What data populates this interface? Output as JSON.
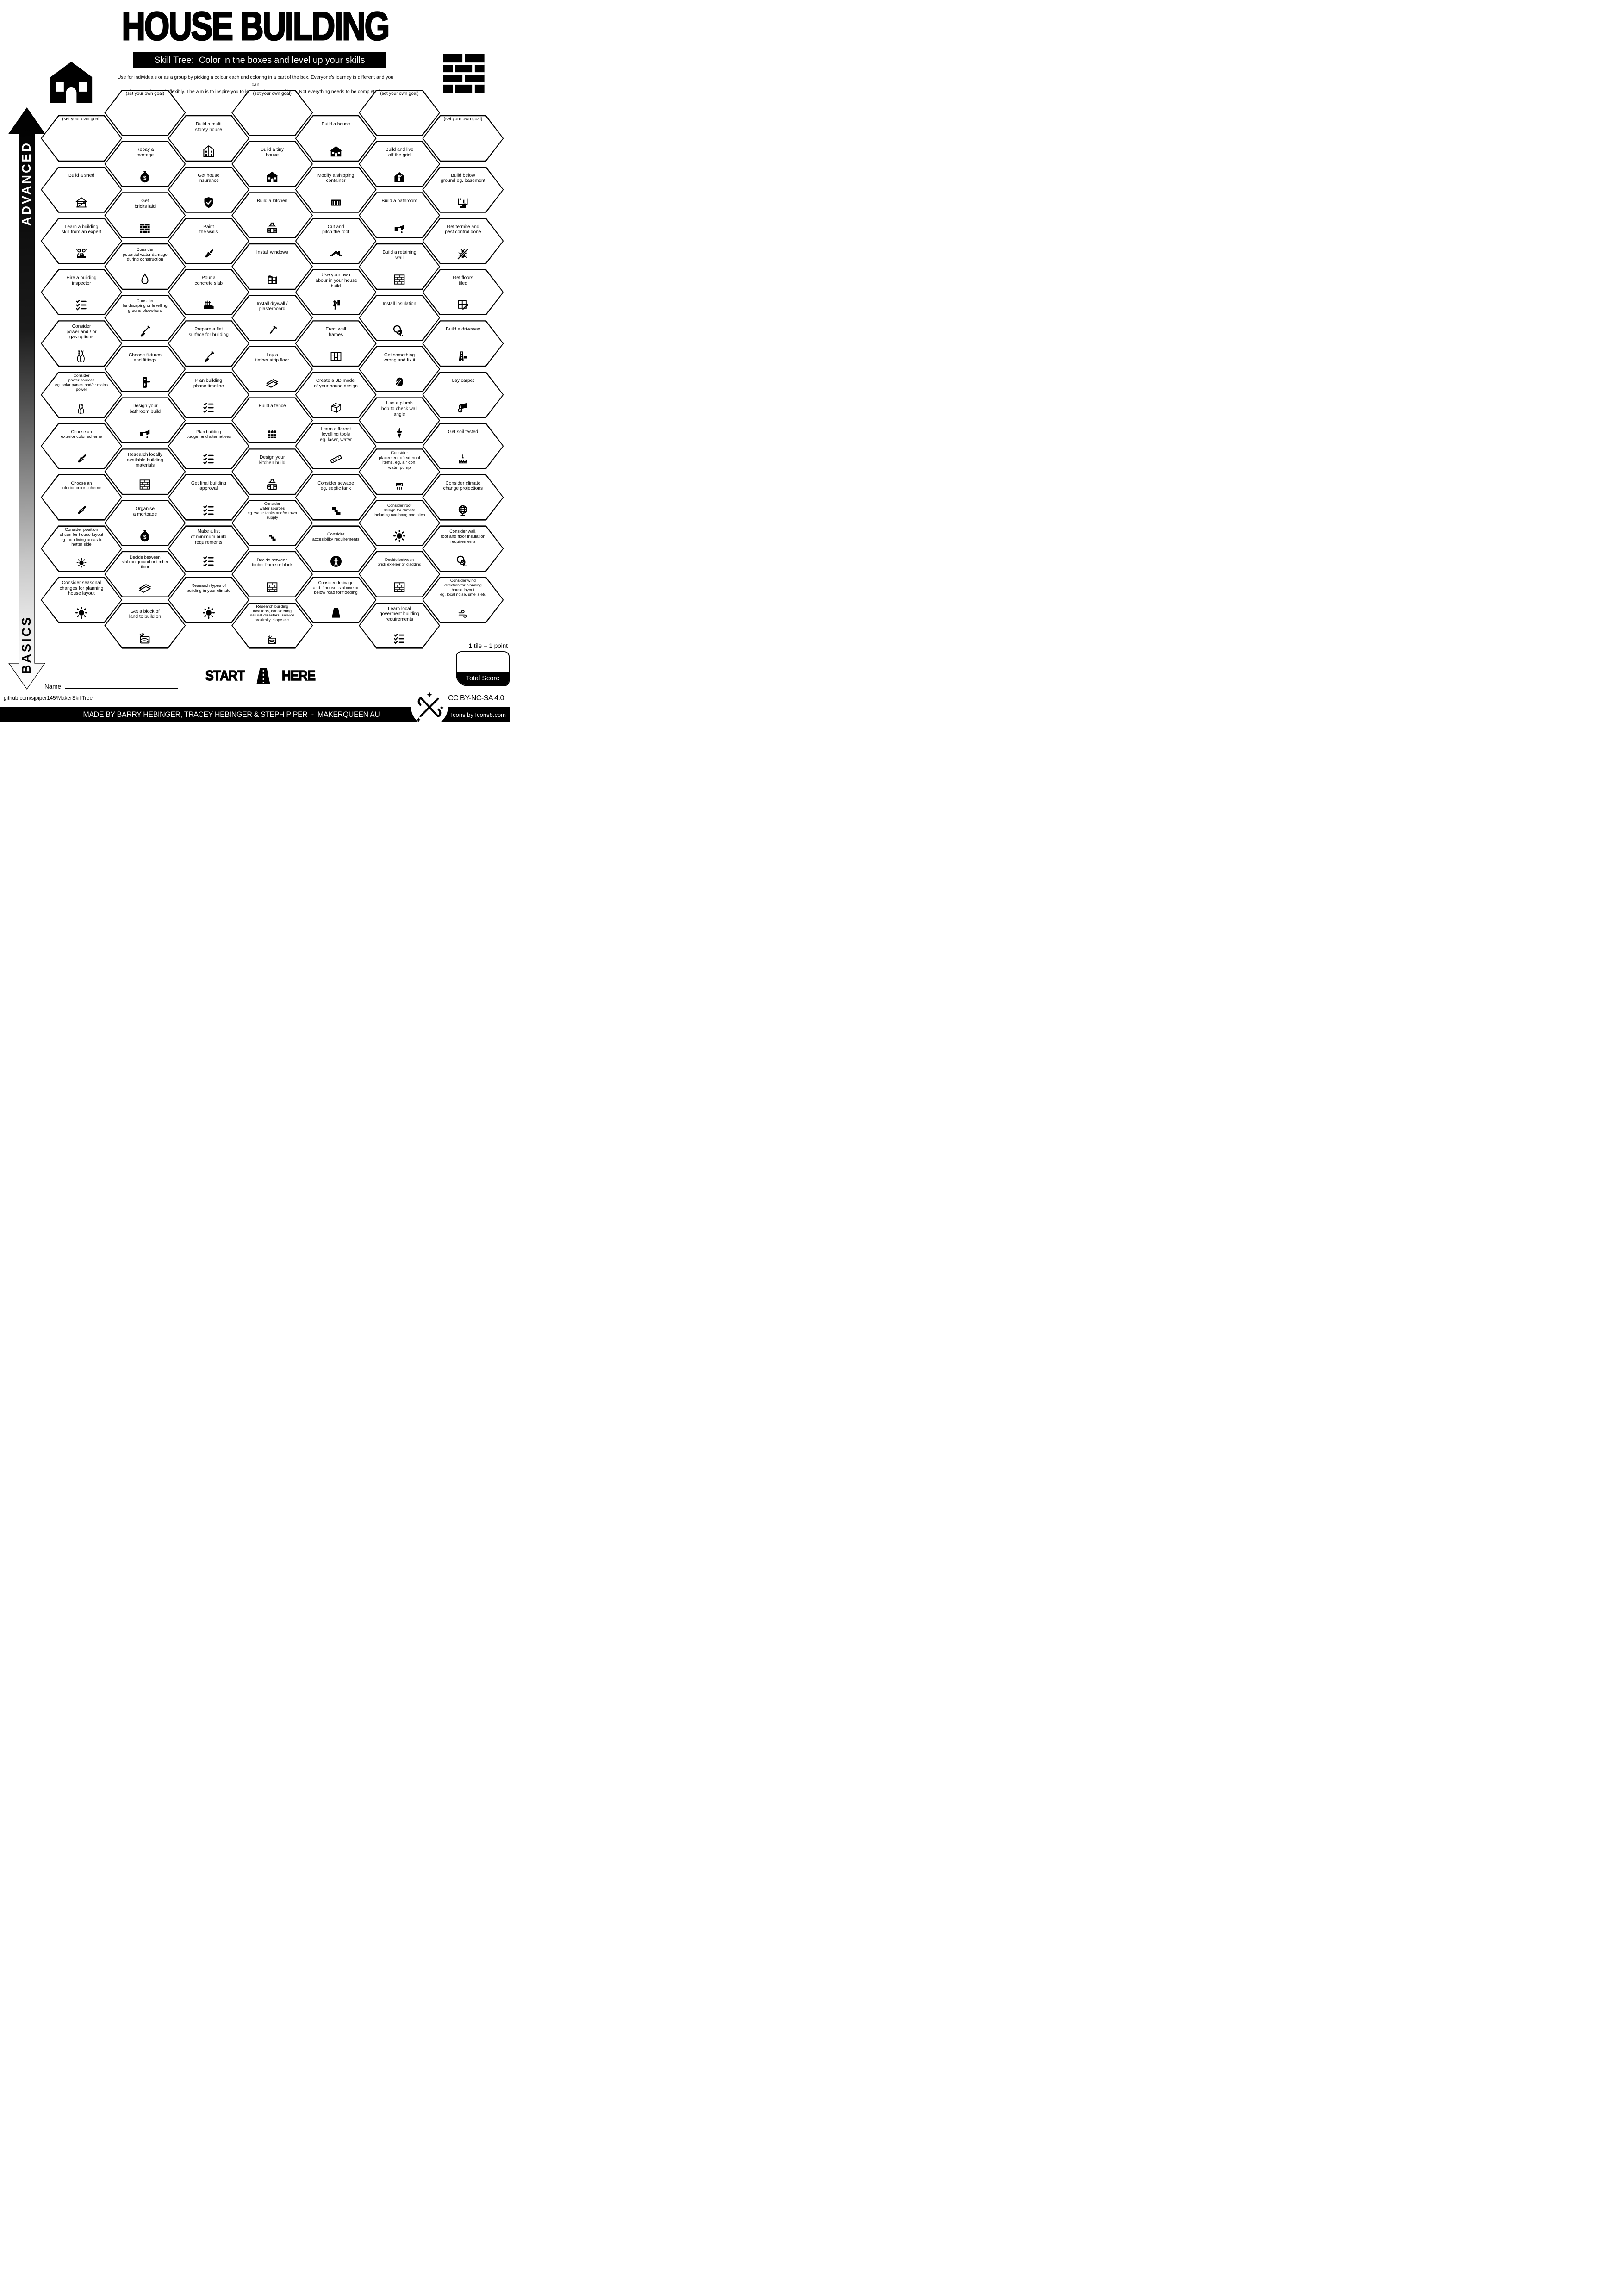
{
  "header": {
    "title": "HOUSE BUILDING",
    "subtitle": "Skill Tree:  Color in the boxes and level up your skills",
    "description": "Use for individuals or as a group by picking a colour each and coloring in a part of the box.  Everyone's journey is different and you can\ninterpret the goals flexibly.  The aim is to inspire you to learn and try new things. Not everything needs to be completed.",
    "corner_icons": {
      "left": "house-icon",
      "right": "brick-wall-icon"
    }
  },
  "axis": {
    "top_label": "ADVANCED",
    "bottom_label": "BASICS"
  },
  "start": {
    "start_label": "START",
    "here_label": "HERE",
    "icon": "road-icon"
  },
  "name_field": {
    "label": "Name:"
  },
  "legend": {
    "tile_points": "1 tile = 1 point",
    "total_score_label": "Total Score"
  },
  "links": {
    "github": "github.com/sjpiper145/MakerSkillTree",
    "license": "CC BY-NC-SA 4.0",
    "credit": "MADE BY BARRY HEBINGER, TRACEY HEBINGER & STEPH PIPER  -  MAKERQUEEN AU",
    "icons_credit": "Icons by Icons8.com"
  },
  "colors": {
    "ink": "#000000",
    "paper": "#ffffff"
  },
  "tiles": [
    {
      "col": 0,
      "row": 0,
      "label": "(set your own goal)",
      "icon": null
    },
    {
      "col": 0,
      "row": 1,
      "label": "Build a shed",
      "icon": "shed-icon"
    },
    {
      "col": 0,
      "row": 2,
      "label": "Learn a building\nskill from an expert",
      "icon": "experts-icon"
    },
    {
      "col": 0,
      "row": 3,
      "label": "Hire a building\ninspector",
      "icon": "checklist-icon"
    },
    {
      "col": 0,
      "row": 4,
      "label": "Consider\npower and / or\ngas options",
      "icon": "wires-icon"
    },
    {
      "col": 0,
      "row": 5,
      "label": "Consider\npower sources\neg. solar panels and/or mains\npower",
      "icon": "wires-icon"
    },
    {
      "col": 0,
      "row": 6,
      "label": "Choose an\nexterior color scheme",
      "icon": "paintbrush-icon"
    },
    {
      "col": 0,
      "row": 7,
      "label": "Choose an\ninterior color scheme",
      "icon": "paintbrush-icon"
    },
    {
      "col": 0,
      "row": 8,
      "label": "Consider position\nof sun for house layout\neg. non living areas to\nhotter side",
      "icon": "sun-icon"
    },
    {
      "col": 0,
      "row": 9,
      "label": "Consider seasonal\nchanges for planning\nhouse layout",
      "icon": "sun-icon"
    },
    {
      "col": 1,
      "row": 0,
      "label": "(set your own goal)",
      "icon": null
    },
    {
      "col": 1,
      "row": 1,
      "label": "Repay a\nmortage",
      "icon": "money-bag-icon"
    },
    {
      "col": 1,
      "row": 2,
      "label": "Get\nbricks laid",
      "icon": "brick-wall-icon"
    },
    {
      "col": 1,
      "row": 3,
      "label": "Consider\npotential water damage\nduring construction",
      "icon": "droplet-icon"
    },
    {
      "col": 1,
      "row": 4,
      "label": "Consider\nlandscaping or levelling\nground elsewhere",
      "icon": "shovel-icon"
    },
    {
      "col": 1,
      "row": 5,
      "label": "Choose fixtures\nand fittings",
      "icon": "door-handle-icon"
    },
    {
      "col": 1,
      "row": 6,
      "label": "Design your\nbathroom build",
      "icon": "faucet-icon"
    },
    {
      "col": 1,
      "row": 7,
      "label": "Research locally\navailable building\nmaterials",
      "icon": "brick-wall-outline-icon"
    },
    {
      "col": 1,
      "row": 8,
      "label": "Organise\na mortgage",
      "icon": "money-bag-icon"
    },
    {
      "col": 1,
      "row": 9,
      "label": "Decide between\nslab on ground or timber\nfloor",
      "icon": "timber-planks-icon"
    },
    {
      "col": 1,
      "row": 10,
      "label": "Get a block of\nland to build on",
      "icon": "land-plot-icon"
    },
    {
      "col": 2,
      "row": 0,
      "label": "Build a multi\nstorey house",
      "icon": "multi-storey-house-icon"
    },
    {
      "col": 2,
      "row": 1,
      "label": "Get house\ninsurance",
      "icon": "shield-check-icon"
    },
    {
      "col": 2,
      "row": 2,
      "label": "Paint\nthe walls",
      "icon": "paintbrush-icon"
    },
    {
      "col": 2,
      "row": 3,
      "label": "Pour a\nconcrete slab",
      "icon": "concrete-slab-icon"
    },
    {
      "col": 2,
      "row": 4,
      "label": "Prepare a flat\nsurface for building",
      "icon": "shovel-icon"
    },
    {
      "col": 2,
      "row": 5,
      "label": "Plan building\nphase timeline",
      "icon": "checklist-icon"
    },
    {
      "col": 2,
      "row": 6,
      "label": "Plan building\nbudget and alternatives",
      "icon": "checklist-icon"
    },
    {
      "col": 2,
      "row": 7,
      "label": "Get final building\napproval",
      "icon": "checklist-icon"
    },
    {
      "col": 2,
      "row": 8,
      "label": "Make a list\nof minimum build\nrequirements",
      "icon": "checklist-icon"
    },
    {
      "col": 2,
      "row": 9,
      "label": "Research types of\nbuilding in your climate",
      "icon": "sun-icon"
    },
    {
      "col": 3,
      "row": 0,
      "label": "(set your own goal)",
      "icon": null
    },
    {
      "col": 3,
      "row": 1,
      "label": "Build a tiny\nhouse",
      "icon": "tiny-house-icon"
    },
    {
      "col": 3,
      "row": 2,
      "label": "Build a kitchen",
      "icon": "kitchen-icon"
    },
    {
      "col": 3,
      "row": 3,
      "label": "Install windows",
      "icon": "window-icon"
    },
    {
      "col": 3,
      "row": 4,
      "label": "Install drywall /\nplasterboard",
      "icon": "nail-icon"
    },
    {
      "col": 3,
      "row": 5,
      "label": "Lay a\ntimber strip floor",
      "icon": "timber-planks-icon"
    },
    {
      "col": 3,
      "row": 6,
      "label": "Build a fence",
      "icon": "fence-icon"
    },
    {
      "col": 3,
      "row": 7,
      "label": "Design your\nkitchen build",
      "icon": "kitchen-icon"
    },
    {
      "col": 3,
      "row": 8,
      "label": "Consider\nwater sources\neg. water tanks and/or town\nsupply",
      "icon": "pipe-icon"
    },
    {
      "col": 3,
      "row": 9,
      "label": "Decide between\ntimber frame or block",
      "icon": "brick-wall-outline-icon"
    },
    {
      "col": 3,
      "row": 10,
      "label": "Research building\nlocations, considering\nnatural disasters, service\nproximity, slope etc.",
      "icon": "land-plot-icon"
    },
    {
      "col": 4,
      "row": 0,
      "label": "Build a house",
      "icon": "house-icon"
    },
    {
      "col": 4,
      "row": 1,
      "label": "Modify a shipping\ncontainer",
      "icon": "shipping-container-icon"
    },
    {
      "col": 4,
      "row": 2,
      "label": "Cut and\npitch the roof",
      "icon": "roof-icon"
    },
    {
      "col": 4,
      "row": 3,
      "label": "Use your own\nlabour in your house\nbuild",
      "icon": "worker-icon"
    },
    {
      "col": 4,
      "row": 4,
      "label": "Erect wall\nframes",
      "icon": "wall-frames-icon"
    },
    {
      "col": 4,
      "row": 5,
      "label": "Create a 3D model\nof your house design",
      "icon": "house-3d-icon"
    },
    {
      "col": 4,
      "row": 6,
      "label": "Learn different\nlevelling tools\neg. laser, water",
      "icon": "spirit-level-icon"
    },
    {
      "col": 4,
      "row": 7,
      "label": "Consider sewage\neg. septic tank",
      "icon": "pipe-icon"
    },
    {
      "col": 4,
      "row": 8,
      "label": "Consider\naccesibility requirements",
      "icon": "accessibility-icon"
    },
    {
      "col": 4,
      "row": 9,
      "label": "Consider drainage\nand if house is above or\nbelow road for flooding",
      "icon": "road-icon"
    },
    {
      "col": 5,
      "row": 0,
      "label": "(set your own goal)",
      "icon": null
    },
    {
      "col": 5,
      "row": 1,
      "label": "Build and live\noff the grid",
      "icon": "off-grid-house-icon"
    },
    {
      "col": 5,
      "row": 2,
      "label": "Build a bathroom",
      "icon": "faucet-icon"
    },
    {
      "col": 5,
      "row": 3,
      "label": "Build a retaining\nwall",
      "icon": "brick-wall-outline-icon"
    },
    {
      "col": 5,
      "row": 4,
      "label": "Install insulation",
      "icon": "insulation-roll-icon"
    },
    {
      "col": 5,
      "row": 5,
      "label": "Get something\nwrong and fix it",
      "icon": "facepalm-icon"
    },
    {
      "col": 5,
      "row": 6,
      "label": "Use a plumb\nbob to check wall\nangle",
      "icon": "plumb-bob-icon"
    },
    {
      "col": 5,
      "row": 7,
      "label": "Consider\nplacement of external\nitems, eg. air con,\nwater pump",
      "icon": "air-con-icon"
    },
    {
      "col": 5,
      "row": 8,
      "label": "Consider roof\ndesign for climate\nincluding overhang and pitch",
      "icon": "sun-icon"
    },
    {
      "col": 5,
      "row": 9,
      "label": "Decide between\nbrick exterior or cladding",
      "icon": "brick-wall-outline-icon"
    },
    {
      "col": 5,
      "row": 10,
      "label": "Learn local\ngoverment building\nrequirements",
      "icon": "checklist-icon"
    },
    {
      "col": 6,
      "row": 0,
      "label": "(set your own goal)",
      "icon": null
    },
    {
      "col": 6,
      "row": 1,
      "label": "Build below\nground eg. basement",
      "icon": "basement-icon"
    },
    {
      "col": 6,
      "row": 2,
      "label": "Get termite and\npest control done",
      "icon": "bug-icon"
    },
    {
      "col": 6,
      "row": 3,
      "label": "Get floors\ntiled",
      "icon": "floor-tiles-icon"
    },
    {
      "col": 6,
      "row": 4,
      "label": "Build a driveway",
      "icon": "driveway-icon"
    },
    {
      "col": 6,
      "row": 5,
      "label": "Lay carpet",
      "icon": "carpet-icon"
    },
    {
      "col": 6,
      "row": 6,
      "label": "Get soil tested",
      "icon": "soil-test-icon"
    },
    {
      "col": 6,
      "row": 7,
      "label": "Consider climate\nchange projections",
      "icon": "globe-icon"
    },
    {
      "col": 6,
      "row": 8,
      "label": "Consider wall,\nroof and floor insulation\nrequirements",
      "icon": "insulation-roll-icon"
    },
    {
      "col": 6,
      "row": 9,
      "label": "Consider wind\ndirection for planning\nhouse layout\neg. local noise, smells etc",
      "icon": "wind-icon"
    }
  ]
}
